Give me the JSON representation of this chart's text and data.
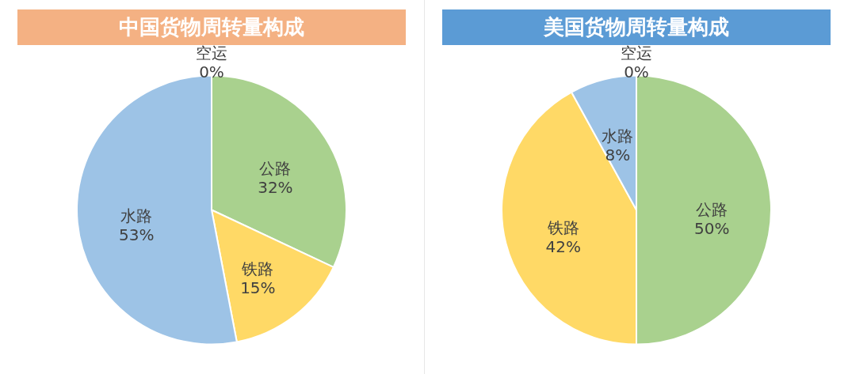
{
  "chart_data": [
    {
      "type": "pie",
      "title": "中国货物周转量构成",
      "categories": [
        "公路",
        "铁路",
        "水路",
        "空运"
      ],
      "values": [
        32,
        15,
        53,
        0
      ],
      "value_labels": [
        "32%",
        "15%",
        "53%",
        "0%"
      ],
      "colors": [
        "#a9d18e",
        "#ffd966",
        "#9dc3e6",
        "#9dc3e6"
      ]
    },
    {
      "type": "pie",
      "title": "美国货物周转量构成",
      "categories": [
        "公路",
        "铁路",
        "水路",
        "空运"
      ],
      "values": [
        50,
        42,
        8,
        0
      ],
      "value_labels": [
        "50%",
        "42%",
        "8%",
        "0%"
      ],
      "colors": [
        "#a9d18e",
        "#ffd966",
        "#9dc3e6",
        "#9dc3e6"
      ]
    }
  ]
}
